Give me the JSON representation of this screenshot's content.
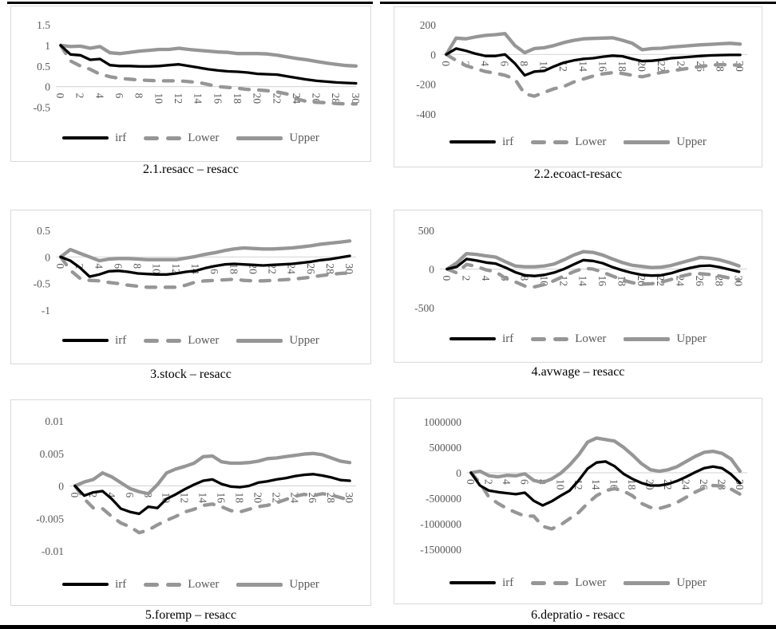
{
  "figure": {
    "kind": "impulse-response-panel-grid",
    "rows": 3,
    "cols": 2
  },
  "colors": {
    "irf_line": "#000000",
    "band_line": "#969696",
    "zero_gridline": "#d9d9d9",
    "tick_text": "#595959",
    "panel_border": "#d9d9d9",
    "table_rule": "#000000"
  },
  "x_values": [
    0,
    1,
    2,
    3,
    4,
    5,
    6,
    7,
    8,
    9,
    10,
    11,
    12,
    13,
    14,
    15,
    16,
    17,
    18,
    19,
    20,
    21,
    22,
    23,
    24,
    25,
    26,
    27,
    28,
    29,
    30
  ],
  "x_tick_labels": [
    0,
    2,
    4,
    6,
    8,
    10,
    12,
    14,
    16,
    18,
    20,
    22,
    24,
    26,
    28,
    30
  ],
  "chart_data": [
    {
      "type": "line",
      "title": "2.1.resacc – resacc",
      "x_range": [
        0,
        30
      ],
      "legend_position": "bottom-center",
      "grid": "zero-line-only",
      "y_ticks": [
        {
          "label": "1.5",
          "value": 1.5
        },
        {
          "label": "1",
          "value": 1
        },
        {
          "label": "0.5",
          "value": 0.5
        },
        {
          "label": "0",
          "value": 0
        },
        {
          "label": "-0.5",
          "value": -0.5
        }
      ],
      "series": [
        {
          "name": "irf",
          "values": [
            1,
            0.78,
            0.76,
            0.65,
            0.67,
            0.52,
            0.5,
            0.5,
            0.49,
            0.49,
            0.5,
            0.52,
            0.54,
            0.5,
            0.46,
            0.42,
            0.39,
            0.37,
            0.36,
            0.34,
            0.31,
            0.3,
            0.29,
            0.25,
            0.21,
            0.17,
            0.14,
            0.12,
            0.1,
            0.09,
            0.08
          ]
        },
        {
          "name": "Lower",
          "values": [
            1,
            0.62,
            0.5,
            0.42,
            0.3,
            0.24,
            0.2,
            0.18,
            0.16,
            0.15,
            0.14,
            0.14,
            0.14,
            0.12,
            0.1,
            0.05,
            0,
            -0.02,
            -0.04,
            -0.07,
            -0.08,
            -0.1,
            -0.13,
            -0.18,
            -0.3,
            -0.36,
            -0.38,
            -0.39,
            -0.41,
            -0.42,
            -0.42
          ]
        },
        {
          "name": "Upper",
          "values": [
            1,
            0.97,
            0.98,
            0.93,
            0.97,
            0.82,
            0.8,
            0.83,
            0.86,
            0.88,
            0.9,
            0.9,
            0.93,
            0.9,
            0.88,
            0.86,
            0.84,
            0.83,
            0.8,
            0.8,
            0.8,
            0.79,
            0.76,
            0.72,
            0.68,
            0.65,
            0.61,
            0.57,
            0.54,
            0.51,
            0.5
          ]
        }
      ]
    },
    {
      "type": "line",
      "title": "2.2.ecoact-resacc",
      "x_range": [
        0,
        30
      ],
      "legend_position": "bottom-center",
      "grid": "zero-line-only",
      "y_ticks": [
        {
          "label": "200",
          "value": 200
        },
        {
          "label": "0",
          "value": 0
        },
        {
          "label": "-200",
          "value": -200
        },
        {
          "label": "-400",
          "value": -400
        }
      ],
      "series": [
        {
          "name": "irf",
          "values": [
            0,
            40,
            25,
            5,
            -10,
            -10,
            0,
            -60,
            -140,
            -115,
            -110,
            -80,
            -55,
            -40,
            -30,
            -25,
            -15,
            -8,
            -12,
            -30,
            -45,
            -42,
            -35,
            -25,
            -20,
            -15,
            -10,
            -6,
            -4,
            -3,
            -3
          ]
        },
        {
          "name": "Lower",
          "values": [
            0,
            -40,
            -75,
            -95,
            -115,
            -125,
            -140,
            -165,
            -265,
            -280,
            -255,
            -230,
            -215,
            -185,
            -165,
            -145,
            -130,
            -122,
            -128,
            -140,
            -150,
            -135,
            -120,
            -110,
            -100,
            -90,
            -80,
            -72,
            -68,
            -70,
            -72
          ]
        },
        {
          "name": "Upper",
          "values": [
            0,
            110,
            105,
            118,
            128,
            133,
            140,
            60,
            12,
            40,
            45,
            60,
            80,
            95,
            105,
            108,
            110,
            112,
            95,
            75,
            32,
            40,
            42,
            50,
            55,
            60,
            65,
            68,
            72,
            75,
            70
          ]
        }
      ]
    },
    {
      "type": "line",
      "title": "3.stock – resacc",
      "x_range": [
        0,
        30
      ],
      "legend_position": "bottom-center",
      "grid": "zero-line-only",
      "y_ticks": [
        {
          "label": "0.5",
          "value": 0.5
        },
        {
          "label": "0",
          "value": 0
        },
        {
          "label": "-0.5",
          "value": -0.5
        },
        {
          "label": "-1",
          "value": -1
        }
      ],
      "series": [
        {
          "name": "irf",
          "values": [
            0,
            -0.07,
            -0.2,
            -0.37,
            -0.33,
            -0.27,
            -0.26,
            -0.28,
            -0.31,
            -0.32,
            -0.33,
            -0.33,
            -0.31,
            -0.28,
            -0.26,
            -0.21,
            -0.17,
            -0.14,
            -0.13,
            -0.14,
            -0.15,
            -0.16,
            -0.15,
            -0.14,
            -0.13,
            -0.11,
            -0.09,
            -0.06,
            -0.04,
            -0.01,
            0.02
          ]
        },
        {
          "name": "Lower",
          "values": [
            0,
            -0.25,
            -0.4,
            -0.44,
            -0.45,
            -0.48,
            -0.5,
            -0.53,
            -0.55,
            -0.57,
            -0.57,
            -0.57,
            -0.57,
            -0.53,
            -0.47,
            -0.45,
            -0.44,
            -0.43,
            -0.42,
            -0.44,
            -0.45,
            -0.45,
            -0.44,
            -0.43,
            -0.42,
            -0.4,
            -0.38,
            -0.35,
            -0.33,
            -0.31,
            -0.3
          ]
        },
        {
          "name": "Upper",
          "values": [
            0,
            0.14,
            0.07,
            0,
            -0.07,
            -0.04,
            -0.03,
            -0.03,
            -0.04,
            -0.05,
            -0.05,
            -0.05,
            -0.05,
            -0.02,
            0.01,
            0.05,
            0.08,
            0.12,
            0.15,
            0.17,
            0.16,
            0.15,
            0.15,
            0.16,
            0.17,
            0.19,
            0.21,
            0.24,
            0.26,
            0.28,
            0.3
          ]
        }
      ]
    },
    {
      "type": "line",
      "title": "4.avwage – resacc",
      "x_range": [
        0,
        30
      ],
      "legend_position": "bottom-center",
      "grid": "zero-line-only",
      "y_ticks": [
        {
          "label": "500",
          "value": 500
        },
        {
          "label": "0",
          "value": 0
        },
        {
          "label": "-500",
          "value": -500
        }
      ],
      "series": [
        {
          "name": "irf",
          "values": [
            0,
            30,
            130,
            110,
            85,
            70,
            20,
            -40,
            -80,
            -90,
            -75,
            -45,
            0,
            60,
            115,
            105,
            75,
            25,
            -15,
            -50,
            -75,
            -85,
            -80,
            -55,
            -15,
            15,
            40,
            45,
            25,
            -5,
            -35
          ]
        },
        {
          "name": "Lower",
          "values": [
            0,
            -50,
            60,
            35,
            -10,
            -35,
            -120,
            -165,
            -220,
            -230,
            -200,
            -150,
            -90,
            -35,
            10,
            0,
            -40,
            -90,
            -140,
            -175,
            -195,
            -190,
            -170,
            -135,
            -95,
            -65,
            -60,
            -70,
            -90,
            -115,
            -140
          ]
        },
        {
          "name": "Upper",
          "values": [
            0,
            80,
            200,
            190,
            170,
            155,
            95,
            40,
            30,
            30,
            40,
            65,
            120,
            180,
            225,
            215,
            180,
            130,
            85,
            50,
            35,
            20,
            25,
            45,
            80,
            115,
            150,
            140,
            120,
            85,
            40
          ]
        }
      ]
    },
    {
      "type": "line",
      "title": "5.foremp – resacc",
      "x_range": [
        0,
        30
      ],
      "legend_position": "bottom-center",
      "grid": "zero-line-only",
      "y_ticks": [
        {
          "label": "0.01",
          "value": 0.01
        },
        {
          "label": "0.005",
          "value": 0.005
        },
        {
          "label": "0",
          "value": 0
        },
        {
          "label": "-0.005",
          "value": -0.005
        },
        {
          "label": "-0.01",
          "value": -0.01
        }
      ],
      "series": [
        {
          "name": "irf",
          "values": [
            0,
            -0.0015,
            -0.001,
            -0.0008,
            -0.002,
            -0.0035,
            -0.004,
            -0.0043,
            -0.0032,
            -0.0034,
            -0.002,
            -0.0013,
            -0.0005,
            0.0002,
            0.0008,
            0.001,
            0.0003,
            -0.0001,
            -0.0002,
            0,
            0.0005,
            0.0007,
            0.001,
            0.0012,
            0.0015,
            0.0017,
            0.0018,
            0.0016,
            0.0013,
            0.0009,
            0.0008
          ]
        },
        {
          "name": "Lower",
          "values": [
            0,
            -0.002,
            -0.0034,
            -0.0035,
            -0.0047,
            -0.0057,
            -0.0063,
            -0.0072,
            -0.0068,
            -0.006,
            -0.0053,
            -0.0047,
            -0.004,
            -0.0036,
            -0.003,
            -0.0028,
            -0.0032,
            -0.0038,
            -0.004,
            -0.0036,
            -0.0032,
            -0.003,
            -0.0026,
            -0.0021,
            -0.0016,
            -0.0013,
            -0.0015,
            -0.0012,
            -0.0014,
            -0.0018,
            -0.0022
          ]
        },
        {
          "name": "Upper",
          "values": [
            0,
            0.0006,
            0.001,
            0.002,
            0.0014,
            0.0005,
            -0.0004,
            -0.0009,
            -0.0012,
            0.0002,
            0.002,
            0.0026,
            0.003,
            0.0035,
            0.0045,
            0.0046,
            0.0037,
            0.0035,
            0.0035,
            0.0036,
            0.0038,
            0.0042,
            0.0043,
            0.0045,
            0.0047,
            0.0049,
            0.005,
            0.0048,
            0.0043,
            0.0038,
            0.0036
          ]
        }
      ]
    },
    {
      "type": "line",
      "title": "6.depratio - resacc",
      "x_range": [
        0,
        30
      ],
      "legend_position": "bottom-center",
      "grid": "zero-line-only",
      "y_ticks": [
        {
          "label": "1000000",
          "value": 1000000
        },
        {
          "label": "500000",
          "value": 500000
        },
        {
          "label": "0",
          "value": 0
        },
        {
          "label": "-500000",
          "value": -500000
        },
        {
          "label": "-1000000",
          "value": -1000000
        },
        {
          "label": "-1500000",
          "value": -1500000
        }
      ],
      "series": [
        {
          "name": "irf",
          "values": [
            0,
            -250000,
            -350000,
            -380000,
            -400000,
            -420000,
            -390000,
            -550000,
            -640000,
            -560000,
            -450000,
            -350000,
            -150000,
            80000,
            200000,
            220000,
            130000,
            -20000,
            -120000,
            -200000,
            -250000,
            -250000,
            -220000,
            -160000,
            -80000,
            10000,
            90000,
            120000,
            90000,
            -30000,
            -200000
          ]
        },
        {
          "name": "Lower",
          "values": [
            0,
            -200000,
            -480000,
            -600000,
            -700000,
            -780000,
            -850000,
            -850000,
            -1050000,
            -1100000,
            -1020000,
            -900000,
            -780000,
            -600000,
            -450000,
            -350000,
            -310000,
            -360000,
            -450000,
            -600000,
            -680000,
            -700000,
            -650000,
            -580000,
            -480000,
            -380000,
            -300000,
            -250000,
            -260000,
            -320000,
            -420000
          ]
        },
        {
          "name": "Upper",
          "values": [
            0,
            30000,
            -60000,
            -80000,
            -50000,
            -60000,
            -20000,
            -150000,
            -190000,
            -120000,
            -10000,
            150000,
            350000,
            600000,
            680000,
            650000,
            620000,
            500000,
            350000,
            180000,
            60000,
            30000,
            60000,
            120000,
            220000,
            320000,
            400000,
            420000,
            380000,
            270000,
            30000
          ]
        }
      ]
    }
  ]
}
